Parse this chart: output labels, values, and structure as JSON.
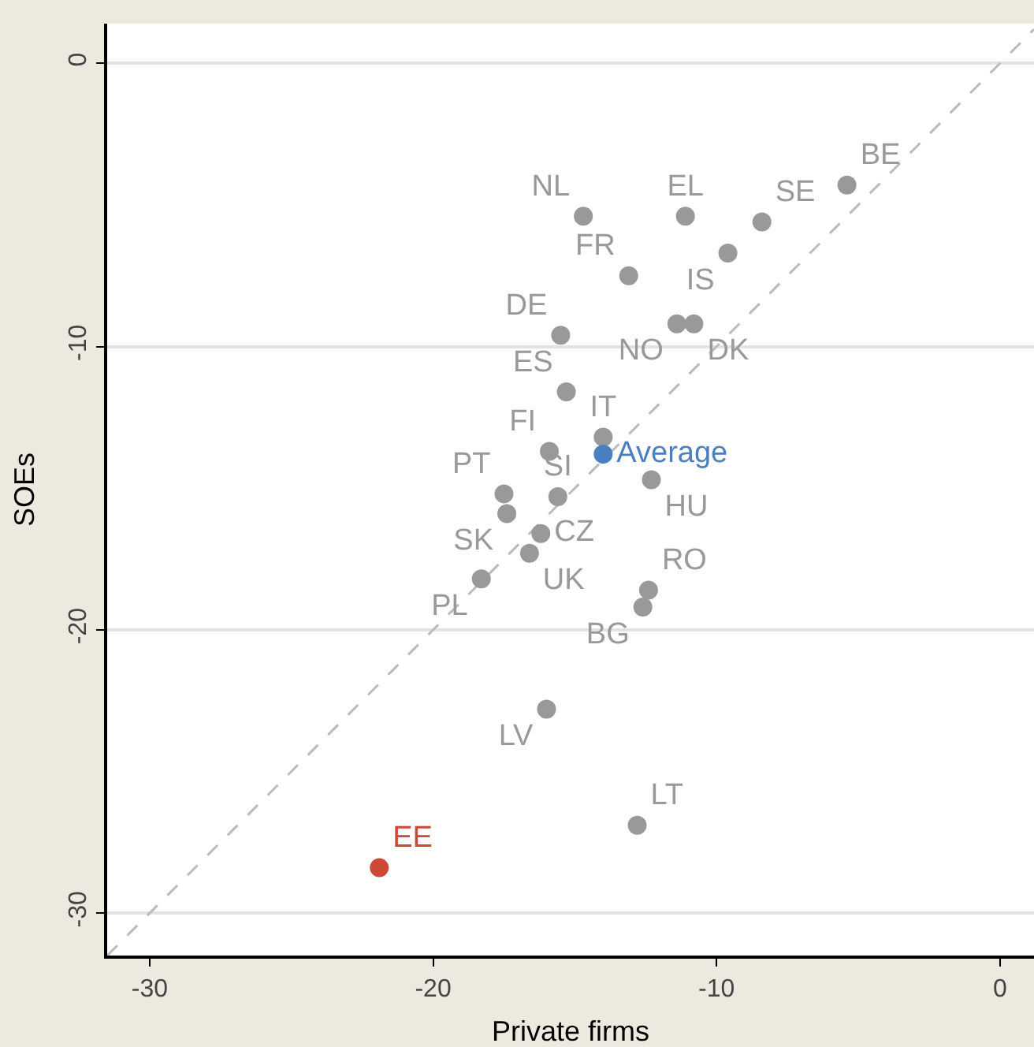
{
  "chart_data": {
    "type": "scatter",
    "xlabel": "Private firms",
    "ylabel": "SOEs",
    "xlim": [
      -31.5,
      1.2
    ],
    "ylim": [
      -31.5,
      1.4
    ],
    "xticks": [
      -30,
      -20,
      -10,
      0
    ],
    "yticks": [
      0,
      -10,
      -20,
      -30
    ],
    "grid": "y",
    "legend": false,
    "marker": "circle",
    "series": [
      {
        "type": "line",
        "line_style": "dashed",
        "marker": "none",
        "color": "#bbbbbb",
        "x": [
          -31.5,
          1.2
        ],
        "values": [
          -31.5,
          1.2
        ]
      },
      {
        "name": "NL",
        "color": "#999999",
        "x": [
          -14.7
        ],
        "values": [
          -5.4
        ]
      },
      {
        "name": "EL",
        "color": "#999999",
        "x": [
          -11.1
        ],
        "values": [
          -5.4
        ]
      },
      {
        "name": "SE",
        "color": "#999999",
        "x": [
          -8.4
        ],
        "values": [
          -5.6
        ]
      },
      {
        "name": "BE",
        "color": "#999999",
        "x": [
          -5.4
        ],
        "values": [
          -4.3
        ]
      },
      {
        "name": "IS",
        "color": "#999999",
        "x": [
          -9.6
        ],
        "values": [
          -6.7
        ]
      },
      {
        "name": "FR",
        "color": "#999999",
        "x": [
          -13.1
        ],
        "values": [
          -7.5
        ]
      },
      {
        "name": "NO",
        "color": "#999999",
        "x": [
          -11.4
        ],
        "values": [
          -9.2
        ]
      },
      {
        "name": "DK",
        "color": "#999999",
        "x": [
          -10.8
        ],
        "values": [
          -9.2
        ]
      },
      {
        "name": "DE",
        "color": "#999999",
        "x": [
          -15.5
        ],
        "values": [
          -9.6
        ]
      },
      {
        "name": "ES",
        "color": "#999999",
        "x": [
          -15.3
        ],
        "values": [
          -11.6
        ]
      },
      {
        "name": "IT",
        "color": "#999999",
        "x": [
          -14.0
        ],
        "values": [
          -13.2
        ]
      },
      {
        "name": "FI",
        "color": "#999999",
        "x": [
          -15.9
        ],
        "values": [
          -13.7
        ]
      },
      {
        "name": "HU",
        "color": "#999999",
        "x": [
          -12.3
        ],
        "values": [
          -14.7
        ]
      },
      {
        "name": "PT",
        "color": "#999999",
        "x": [
          -17.5
        ],
        "values": [
          -15.2
        ]
      },
      {
        "name": "SI",
        "color": "#999999",
        "x": [
          -15.6
        ],
        "values": [
          -15.3
        ]
      },
      {
        "name": "SK",
        "color": "#999999",
        "x": [
          -17.4
        ],
        "values": [
          -15.9
        ]
      },
      {
        "name": "CZ",
        "color": "#999999",
        "x": [
          -16.2
        ],
        "values": [
          -16.6
        ]
      },
      {
        "name": "UK",
        "color": "#999999",
        "x": [
          -16.6
        ],
        "values": [
          -17.3
        ]
      },
      {
        "name": "PL",
        "color": "#999999",
        "x": [
          -18.3
        ],
        "values": [
          -18.2
        ]
      },
      {
        "name": "RO",
        "color": "#999999",
        "x": [
          -12.4
        ],
        "values": [
          -18.6
        ]
      },
      {
        "name": "BG",
        "color": "#999999",
        "x": [
          -12.6
        ],
        "values": [
          -19.2
        ]
      },
      {
        "name": "LV",
        "color": "#999999",
        "x": [
          -16.0
        ],
        "values": [
          -22.8
        ]
      },
      {
        "name": "LT",
        "color": "#999999",
        "x": [
          -12.8
        ],
        "values": [
          -26.9
        ]
      },
      {
        "name": "EE",
        "color": "#cc4a35",
        "x": [
          -21.9
        ],
        "values": [
          -28.4
        ]
      },
      {
        "name": "Average",
        "color": "#4a7fc1",
        "x": [
          -14.0
        ],
        "values": [
          -13.8
        ]
      }
    ]
  }
}
